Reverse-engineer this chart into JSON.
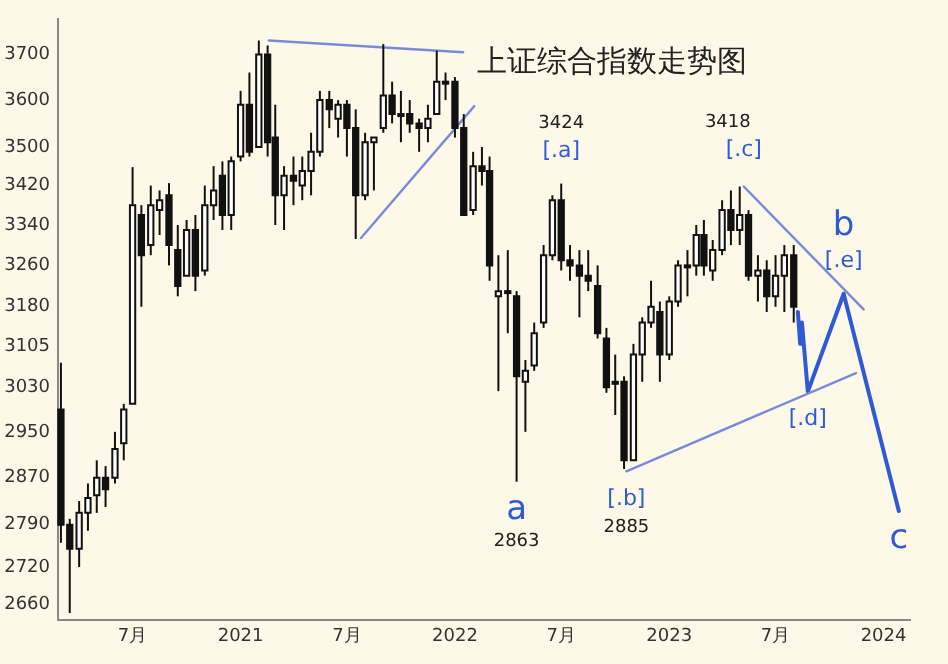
{
  "chart_data": {
    "type": "candlestick",
    "title": "上证综合指数走势图",
    "log": "y",
    "x": [
      "2020-03-01",
      "2020-03-16",
      "2020-04-01",
      "2020-04-16",
      "2020-05-01",
      "2020-05-16",
      "2020-06-01",
      "2020-06-16",
      "2020-07-01",
      "2020-07-16",
      "2020-08-01",
      "2020-08-16",
      "2020-09-01",
      "2020-09-16",
      "2020-10-01",
      "2020-10-16",
      "2020-11-01",
      "2020-11-16",
      "2020-12-01",
      "2020-12-16",
      "2021-01-01",
      "2021-01-16",
      "2021-02-01",
      "2021-02-16",
      "2021-03-01",
      "2021-03-16",
      "2021-04-01",
      "2021-04-16",
      "2021-05-01",
      "2021-05-16",
      "2021-06-01",
      "2021-06-16",
      "2021-07-01",
      "2021-07-16",
      "2021-08-01",
      "2021-08-16",
      "2021-09-01",
      "2021-09-16",
      "2021-10-01",
      "2021-10-16",
      "2021-11-01",
      "2021-11-16",
      "2021-12-01",
      "2021-12-16",
      "2022-01-01",
      "2022-01-16",
      "2022-02-01",
      "2022-02-16",
      "2022-03-01",
      "2022-03-16",
      "2022-04-01",
      "2022-04-16",
      "2022-05-01",
      "2022-05-16",
      "2022-06-01",
      "2022-06-16",
      "2022-07-01",
      "2022-07-16",
      "2022-08-01",
      "2022-08-16",
      "2022-09-01",
      "2022-09-16",
      "2022-10-01",
      "2022-10-16",
      "2022-11-01",
      "2022-11-16",
      "2022-12-01",
      "2022-12-16",
      "2023-01-01",
      "2023-01-16",
      "2023-02-01",
      "2023-02-16",
      "2023-03-01",
      "2023-03-16",
      "2023-04-01",
      "2023-04-16",
      "2023-05-01",
      "2023-05-16",
      "2023-06-01",
      "2023-06-16",
      "2023-07-01",
      "2023-07-16",
      "2023-08-01"
    ],
    "ohlc": [
      [
        2990,
        3075,
        2760,
        2790
      ],
      [
        2790,
        2800,
        2646,
        2750
      ],
      [
        2750,
        2830,
        2720,
        2810
      ],
      [
        2810,
        2860,
        2780,
        2835
      ],
      [
        2840,
        2900,
        2810,
        2870
      ],
      [
        2870,
        2890,
        2820,
        2850
      ],
      [
        2870,
        2950,
        2860,
        2920
      ],
      [
        2930,
        3000,
        2900,
        2990
      ],
      [
        3000,
        3458,
        3000,
        3380
      ],
      [
        3360,
        3380,
        3180,
        3280
      ],
      [
        3300,
        3420,
        3280,
        3380
      ],
      [
        3370,
        3410,
        3320,
        3390
      ],
      [
        3400,
        3425,
        3260,
        3300
      ],
      [
        3290,
        3340,
        3200,
        3220
      ],
      [
        3240,
        3350,
        3240,
        3330
      ],
      [
        3330,
        3360,
        3210,
        3240
      ],
      [
        3250,
        3420,
        3240,
        3380
      ],
      [
        3380,
        3460,
        3350,
        3410
      ],
      [
        3440,
        3470,
        3330,
        3360
      ],
      [
        3360,
        3480,
        3330,
        3470
      ],
      [
        3480,
        3620,
        3470,
        3590
      ],
      [
        3590,
        3660,
        3480,
        3490
      ],
      [
        3500,
        3731,
        3500,
        3700
      ],
      [
        3700,
        3720,
        3480,
        3510
      ],
      [
        3520,
        3590,
        3340,
        3400
      ],
      [
        3400,
        3460,
        3330,
        3440
      ],
      [
        3440,
        3480,
        3380,
        3430
      ],
      [
        3420,
        3480,
        3390,
        3450
      ],
      [
        3450,
        3530,
        3400,
        3490
      ],
      [
        3490,
        3620,
        3480,
        3600
      ],
      [
        3600,
        3620,
        3540,
        3580
      ],
      [
        3560,
        3600,
        3520,
        3590
      ],
      [
        3590,
        3600,
        3480,
        3540
      ],
      [
        3540,
        3580,
        3312,
        3400
      ],
      [
        3400,
        3530,
        3390,
        3510
      ],
      [
        3510,
        3520,
        3410,
        3520
      ],
      [
        3540,
        3723,
        3530,
        3610
      ],
      [
        3610,
        3640,
        3550,
        3570
      ],
      [
        3570,
        3620,
        3510,
        3570
      ],
      [
        3570,
        3600,
        3530,
        3550
      ],
      [
        3550,
        3560,
        3490,
        3540
      ],
      [
        3540,
        3590,
        3510,
        3560
      ],
      [
        3570,
        3708,
        3570,
        3640
      ],
      [
        3640,
        3660,
        3600,
        3640
      ],
      [
        3640,
        3650,
        3520,
        3540
      ],
      [
        3540,
        3570,
        3360,
        3360
      ],
      [
        3370,
        3490,
        3360,
        3460
      ],
      [
        3460,
        3500,
        3420,
        3450
      ],
      [
        3450,
        3480,
        3230,
        3260
      ],
      [
        3200,
        3280,
        3023,
        3210
      ],
      [
        3210,
        3290,
        3130,
        3210
      ],
      [
        3200,
        3210,
        2863,
        3050
      ],
      [
        3040,
        3080,
        2950,
        3060
      ],
      [
        3070,
        3150,
        3060,
        3130
      ],
      [
        3150,
        3300,
        3140,
        3280
      ],
      [
        3280,
        3400,
        3270,
        3390
      ],
      [
        3390,
        3424,
        3250,
        3270
      ],
      [
        3270,
        3300,
        3230,
        3260
      ],
      [
        3260,
        3290,
        3160,
        3240
      ],
      [
        3240,
        3290,
        3210,
        3230
      ],
      [
        3220,
        3260,
        3120,
        3130
      ],
      [
        3120,
        3140,
        3020,
        3030
      ],
      [
        3040,
        3090,
        2980,
        3040
      ],
      [
        3040,
        3050,
        2885,
        2900
      ],
      [
        2900,
        3110,
        2900,
        3090
      ],
      [
        3090,
        3160,
        3040,
        3150
      ],
      [
        3150,
        3230,
        3140,
        3180
      ],
      [
        3170,
        3190,
        3040,
        3090
      ],
      [
        3090,
        3200,
        3080,
        3190
      ],
      [
        3190,
        3270,
        3180,
        3260
      ],
      [
        3260,
        3290,
        3200,
        3260
      ],
      [
        3260,
        3340,
        3240,
        3320
      ],
      [
        3320,
        3350,
        3240,
        3260
      ],
      [
        3250,
        3310,
        3230,
        3290
      ],
      [
        3290,
        3390,
        3280,
        3370
      ],
      [
        3370,
        3410,
        3300,
        3330
      ],
      [
        3330,
        3418,
        3300,
        3360
      ],
      [
        3360,
        3370,
        3230,
        3240
      ],
      [
        3240,
        3280,
        3190,
        3250
      ],
      [
        3250,
        3270,
        3170,
        3200
      ],
      [
        3200,
        3280,
        3180,
        3240
      ],
      [
        3240,
        3300,
        3170,
        3280
      ],
      [
        3280,
        3300,
        3150,
        3180
      ]
    ],
    "series": [
      {
        "type": "line",
        "color": "#7b8ad8",
        "x": [
          "2021-02-18",
          "2022-01-15"
        ],
        "values": [
          3731,
          3705
        ]
      },
      {
        "type": "line",
        "color": "#7b8ad8",
        "x": [
          "2021-07-25",
          "2022-02-03"
        ],
        "values": [
          3314,
          3587
        ]
      },
      {
        "type": "line",
        "color": "#7b8ad8",
        "x": [
          "2023-05-08",
          "2023-11-28"
        ],
        "values": [
          3418,
          3175
        ]
      },
      {
        "type": "line",
        "color": "#7b8ad8",
        "x": [
          "2022-10-20",
          "2023-11-15"
        ],
        "values": [
          2881,
          3056
        ]
      },
      {
        "type": "line",
        "color": "#2f5ad6",
        "x": [
          "2023-08-08",
          "2023-08-12",
          "2023-08-15",
          "2023-08-25",
          "2023-10-25",
          "2024-01-27"
        ],
        "values": [
          3170,
          3110,
          3150,
          3022,
          3205,
          2813
        ]
      }
    ],
    "xlim": [
      "2020-02-25",
      "2024-02-15"
    ],
    "xticks": [
      {
        "value": "2020-07",
        "label": "7月"
      },
      "2021",
      {
        "value": "2021-07",
        "label": "7月"
      },
      "2022",
      {
        "value": "2022-07",
        "label": "7月"
      },
      "2023",
      {
        "value": "2023-07",
        "label": "7月"
      },
      "2024"
    ],
    "ylim": [
      2635,
      3780
    ],
    "yticks": [
      2660,
      2720,
      2790,
      2870,
      2950,
      3030,
      3105,
      3180,
      3260,
      3340,
      3420,
      3500,
      3600,
      3700
    ],
    "grid": false,
    "legend": false,
    "annotations": [
      {
        "text": "3424",
        "x": "2022-07-01",
        "y": 3424
      },
      {
        "text": "3418",
        "x": "2023-05-08",
        "y": 3418
      },
      {
        "text": "2863",
        "x": "2022-04-16",
        "y": 2863
      },
      {
        "text": "2885",
        "x": "2022-10-20",
        "y": 2881
      },
      {
        "text": "[.a]",
        "x": "2022-07-01",
        "y": 3424
      },
      {
        "text": "[.c]",
        "x": "2023-05-08",
        "y": 3418
      },
      {
        "text": "[.e]",
        "x": "2023-10-25",
        "y": 3205
      },
      {
        "text": "[.d]",
        "x": "2023-08-25",
        "y": 3022
      },
      {
        "text": "[.b]",
        "x": "2022-10-20",
        "y": 2881
      },
      {
        "text": "a",
        "x": "2022-04-16",
        "y": 2863
      },
      {
        "text": "b",
        "x": "2023-10-25",
        "y": 3205
      },
      {
        "text": "c",
        "x": "2024-01-27",
        "y": 2813
      }
    ]
  }
}
